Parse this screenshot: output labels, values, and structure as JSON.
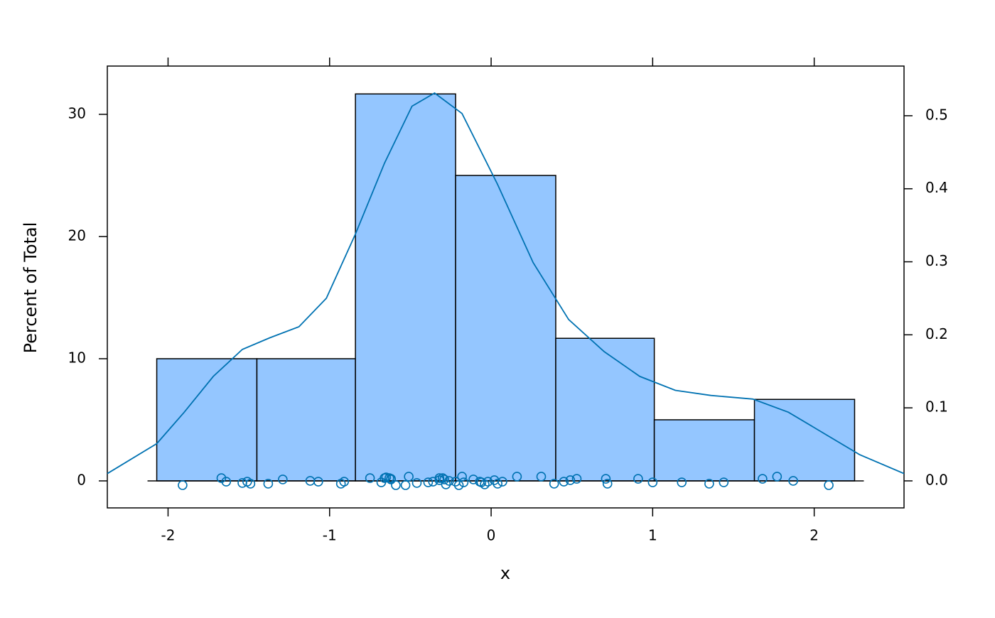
{
  "chart_data": {
    "type": "histogram",
    "xlabel": "x",
    "ylabel": "Percent of Total",
    "bins": [
      -2.07,
      -1.45,
      -0.84,
      -0.22,
      0.4,
      1.01,
      1.63,
      2.25
    ],
    "values": [
      10,
      10,
      31.67,
      25,
      11.67,
      5,
      6.67
    ],
    "color": "#94c6ff",
    "xlim": [
      -2.376,
      2.556
    ],
    "ylim": [
      -2.21,
      33.95
    ],
    "y2lim": [
      -0.037,
      0.568
    ],
    "xticks": [
      -2,
      -1,
      0,
      1,
      2
    ],
    "yticks": [
      0,
      10,
      20,
      30
    ],
    "y2ticks": [
      {
        "value": 0,
        "label": "0.0"
      },
      0.1,
      0.2,
      0.3,
      0.4,
      0.5
    ],
    "density": {
      "axis": "y2",
      "color": "#0072b2",
      "x": [
        -2.376,
        -2.07,
        -1.9,
        -1.72,
        -1.54,
        -1.37,
        -1.19,
        -1.02,
        -0.84,
        -0.66,
        -0.49,
        -0.35,
        -0.18,
        0.04,
        0.26,
        0.48,
        0.7,
        0.92,
        1.14,
        1.36,
        1.62,
        1.84,
        2.06,
        2.28,
        2.556
      ],
      "y": [
        0.01,
        0.051,
        0.094,
        0.143,
        0.18,
        0.196,
        0.211,
        0.25,
        0.338,
        0.435,
        0.513,
        0.531,
        0.503,
        0.406,
        0.299,
        0.221,
        0.177,
        0.143,
        0.124,
        0.117,
        0.112,
        0.094,
        0.065,
        0.036,
        0.01
      ]
    },
    "rug": {
      "color": "#0072b2",
      "x": [
        -1.91,
        -1.67,
        -1.64,
        -1.54,
        -1.51,
        -1.49,
        -1.38,
        -1.29,
        -1.12,
        -1.07,
        -0.93,
        -0.91,
        -0.75,
        -0.68,
        -0.66,
        -0.65,
        -0.63,
        -0.62,
        -0.62,
        -0.59,
        -0.53,
        -0.51,
        -0.46,
        -0.39,
        -0.36,
        -0.32,
        -0.32,
        -0.3,
        -0.29,
        -0.28,
        -0.26,
        -0.22,
        -0.2,
        -0.18,
        -0.17,
        -0.11,
        -0.07,
        -0.06,
        -0.04,
        -0.02,
        0.02,
        0.04,
        0.07,
        0.16,
        0.31,
        0.39,
        0.45,
        0.49,
        0.53,
        0.71,
        0.72,
        0.91,
        1.0,
        1.18,
        1.35,
        1.44,
        1.68,
        1.77,
        1.87,
        2.09
      ],
      "y": [
        -0.35,
        0.23,
        -0.06,
        -0.17,
        -0.06,
        -0.23,
        -0.23,
        0.12,
        0,
        -0.06,
        -0.23,
        -0.06,
        0.23,
        -0.12,
        0.23,
        0.29,
        0.23,
        0.17,
        0.12,
        -0.35,
        -0.35,
        0.35,
        -0.17,
        -0.12,
        -0.06,
        0.06,
        0.23,
        0.23,
        0.12,
        -0.29,
        0,
        -0.06,
        -0.35,
        0.35,
        -0.12,
        0.12,
        -0.06,
        -0.12,
        -0.29,
        -0.06,
        0.06,
        -0.23,
        -0.06,
        0.35,
        0.35,
        -0.23,
        -0.06,
        0.06,
        0.17,
        0.17,
        -0.23,
        0.17,
        -0.12,
        -0.12,
        -0.23,
        -0.12,
        0.17,
        0.35,
        0,
        -0.35
      ]
    }
  }
}
